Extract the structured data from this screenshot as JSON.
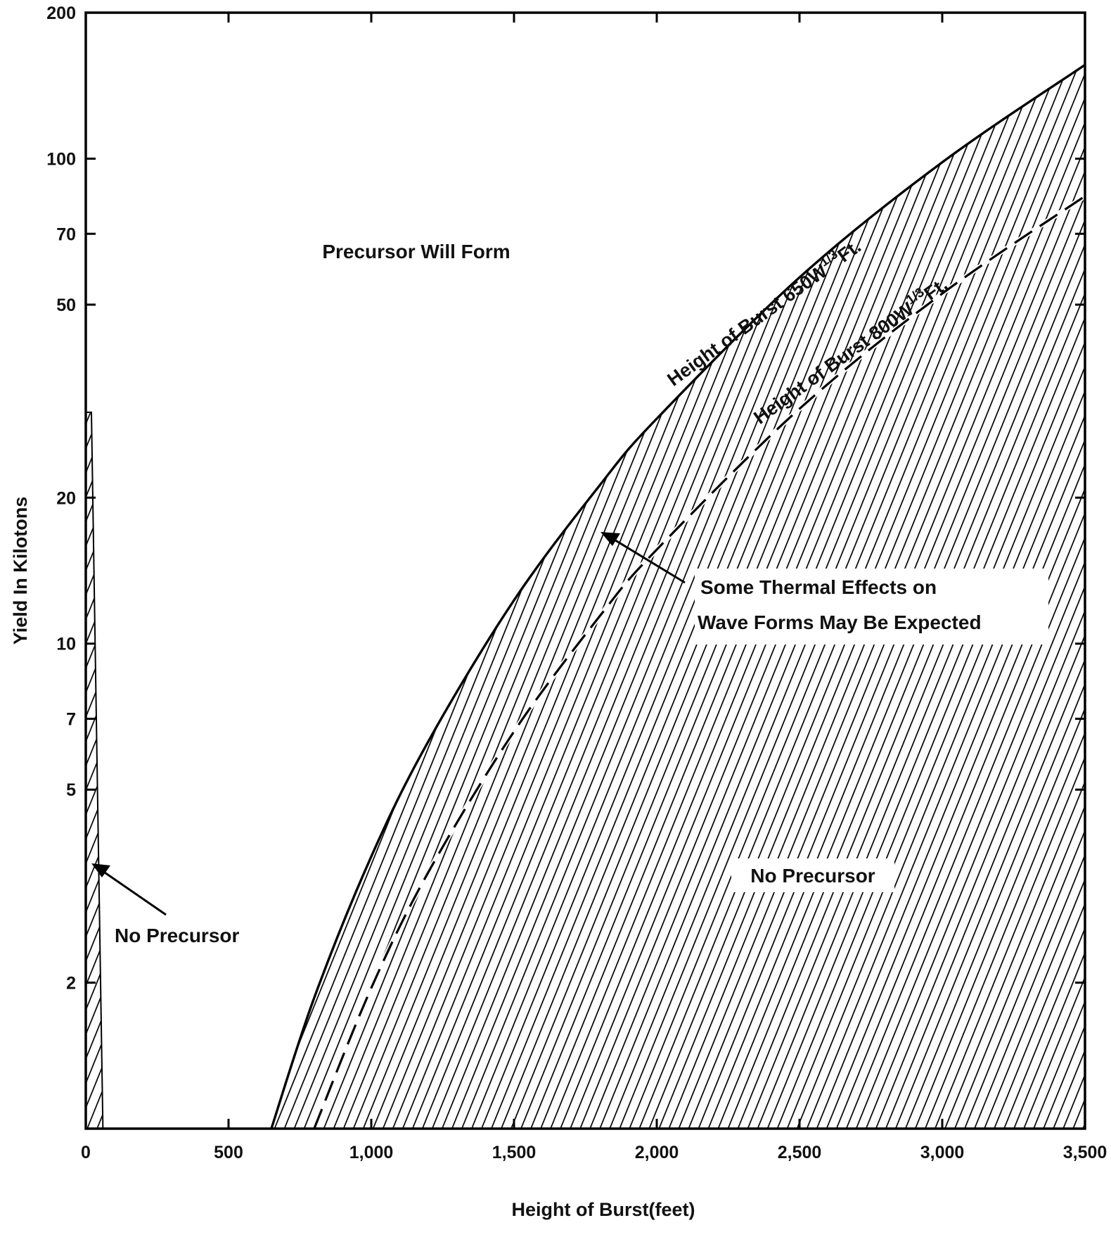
{
  "chart_data": {
    "type": "area",
    "xlabel": "Height of Burst(feet)",
    "ylabel": "Yield In Kilotons",
    "xlim": [
      0,
      3500
    ],
    "ylim": [
      1,
      200
    ],
    "yscale": "log",
    "x_ticks": [
      {
        "value": 0,
        "label": "0"
      },
      {
        "value": 500,
        "label": "500"
      },
      {
        "value": 1000,
        "label": "1,000"
      },
      {
        "value": 1500,
        "label": "1,500"
      },
      {
        "value": 2000,
        "label": "2,000"
      },
      {
        "value": 2500,
        "label": "2,500"
      },
      {
        "value": 3000,
        "label": "3,000"
      },
      {
        "value": 3500,
        "label": "3,500"
      }
    ],
    "y_ticks": [
      {
        "value": 2,
        "label": "2"
      },
      {
        "value": 5,
        "label": "5"
      },
      {
        "value": 7,
        "label": "7"
      },
      {
        "value": 10,
        "label": "10"
      },
      {
        "value": 20,
        "label": "20"
      },
      {
        "value": 50,
        "label": "50"
      },
      {
        "value": 70,
        "label": "70"
      },
      {
        "value": 100,
        "label": "100"
      },
      {
        "value": 200,
        "label": "200"
      }
    ],
    "series": [
      {
        "name": "Height of Burst 650W",
        "label_main": "Height of Burst 650W",
        "label_sup": "1/3",
        "label_unit": "Ft.",
        "style": "solid",
        "x": [
          650,
          800,
          1000,
          1200,
          1500,
          1800,
          2000,
          2500,
          3000,
          3500
        ],
        "y": [
          1.0,
          1.86,
          3.64,
          6.29,
          12.29,
          21.2,
          29.1,
          56.9,
          98.3,
          156.1
        ]
      },
      {
        "name": "Height of Burst 800W",
        "label_main": "Height of Burst 800W",
        "label_sup": "1/3",
        "label_unit": "Ft.",
        "style": "dashed",
        "x": [
          800,
          1000,
          1200,
          1500,
          1800,
          2000,
          2500,
          3000,
          3500
        ],
        "y": [
          1.0,
          1.95,
          3.38,
          6.59,
          11.39,
          15.63,
          30.5,
          52.7,
          83.7
        ]
      }
    ],
    "left_strip_x": [
      0,
      60
    ],
    "left_strip_top_y": 30,
    "annotations": [
      {
        "text": "Precursor Will Form"
      },
      {
        "text": "No Precursor",
        "region": "right"
      },
      {
        "text": "No Precursor",
        "region": "left"
      },
      {
        "lines": [
          "Some Thermal Effects on",
          "Wave Forms May Be Expected"
        ]
      }
    ],
    "hatch": "diagonal",
    "grid": false
  }
}
